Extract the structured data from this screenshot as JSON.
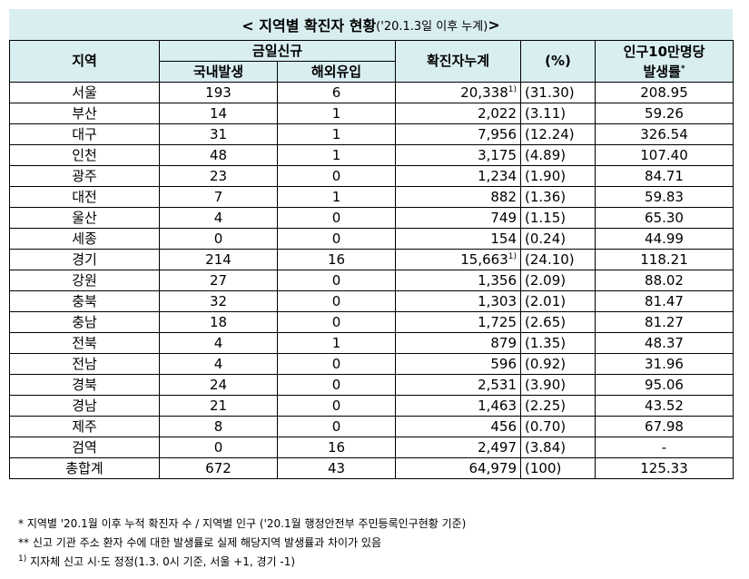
{
  "title": {
    "main": "<  지역별  확진자  현황",
    "sub": "('20.1.3일  이후  누계)",
    "end": "  >"
  },
  "headers": {
    "region": "지역",
    "new_today": "금일신규",
    "domestic": "국내발생",
    "overseas": "해외유입",
    "cumulative": "확진자누계",
    "percent": "(%)",
    "incidence_line1": "인구10만명당",
    "incidence_line2": "발생률",
    "incidence_mark": "*"
  },
  "rows": [
    {
      "region": "서울",
      "domestic": "193",
      "overseas": "6",
      "cumulative": "20,338",
      "note": "1)",
      "percent": "(31.30)",
      "incidence": "208.95"
    },
    {
      "region": "부산",
      "domestic": "14",
      "overseas": "1",
      "cumulative": "2,022",
      "note": "",
      "percent": "(3.11)",
      "incidence": "59.26"
    },
    {
      "region": "대구",
      "domestic": "31",
      "overseas": "1",
      "cumulative": "7,956",
      "note": "",
      "percent": "(12.24)",
      "incidence": "326.54"
    },
    {
      "region": "인천",
      "domestic": "48",
      "overseas": "1",
      "cumulative": "3,175",
      "note": "",
      "percent": "(4.89)",
      "incidence": "107.40"
    },
    {
      "region": "광주",
      "domestic": "23",
      "overseas": "0",
      "cumulative": "1,234",
      "note": "",
      "percent": "(1.90)",
      "incidence": "84.71"
    },
    {
      "region": "대전",
      "domestic": "7",
      "overseas": "1",
      "cumulative": "882",
      "note": "",
      "percent": "(1.36)",
      "incidence": "59.83"
    },
    {
      "region": "울산",
      "domestic": "4",
      "overseas": "0",
      "cumulative": "749",
      "note": "",
      "percent": "(1.15)",
      "incidence": "65.30"
    },
    {
      "region": "세종",
      "domestic": "0",
      "overseas": "0",
      "cumulative": "154",
      "note": "",
      "percent": "(0.24)",
      "incidence": "44.99"
    },
    {
      "region": "경기",
      "domestic": "214",
      "overseas": "16",
      "cumulative": "15,663",
      "note": "1)",
      "percent": "(24.10)",
      "incidence": "118.21"
    },
    {
      "region": "강원",
      "domestic": "27",
      "overseas": "0",
      "cumulative": "1,356",
      "note": "",
      "percent": "(2.09)",
      "incidence": "88.02"
    },
    {
      "region": "충북",
      "domestic": "32",
      "overseas": "0",
      "cumulative": "1,303",
      "note": "",
      "percent": "(2.01)",
      "incidence": "81.47"
    },
    {
      "region": "충남",
      "domestic": "18",
      "overseas": "0",
      "cumulative": "1,725",
      "note": "",
      "percent": "(2.65)",
      "incidence": "81.27"
    },
    {
      "region": "전북",
      "domestic": "4",
      "overseas": "1",
      "cumulative": "879",
      "note": "",
      "percent": "(1.35)",
      "incidence": "48.37"
    },
    {
      "region": "전남",
      "domestic": "4",
      "overseas": "0",
      "cumulative": "596",
      "note": "",
      "percent": "(0.92)",
      "incidence": "31.96"
    },
    {
      "region": "경북",
      "domestic": "24",
      "overseas": "0",
      "cumulative": "2,531",
      "note": "",
      "percent": "(3.90)",
      "incidence": "95.06"
    },
    {
      "region": "경남",
      "domestic": "21",
      "overseas": "0",
      "cumulative": "1,463",
      "note": "",
      "percent": "(2.25)",
      "incidence": "43.52"
    },
    {
      "region": "제주",
      "domestic": "8",
      "overseas": "0",
      "cumulative": "456",
      "note": "",
      "percent": "(0.70)",
      "incidence": "67.98"
    },
    {
      "region": "검역",
      "domestic": "0",
      "overseas": "16",
      "cumulative": "2,497",
      "note": "",
      "percent": "(3.84)",
      "incidence": "-"
    }
  ],
  "total": {
    "region": "총합계",
    "domestic": "672",
    "overseas": "43",
    "cumulative": "64,979",
    "percent": "(100)",
    "incidence": "125.33"
  },
  "notes": {
    "n1": "*  지역별  '20.1월  이후  누적  확진자  수  /  지역별  인구  ('20.1월  행정안전부  주민등록인구현황  기준)",
    "n2": "**  신고  기관  주소  환자  수에  대한  발생률로  실제  해당지역  발생률과  차이가  있음",
    "n3_mark": "1)",
    "n3": " 지자체  신고  시·도  정정(1.3.  0시  기준,  서울  +1,  경기  -1)"
  },
  "colors": {
    "header_bg": "#d9eef1"
  }
}
